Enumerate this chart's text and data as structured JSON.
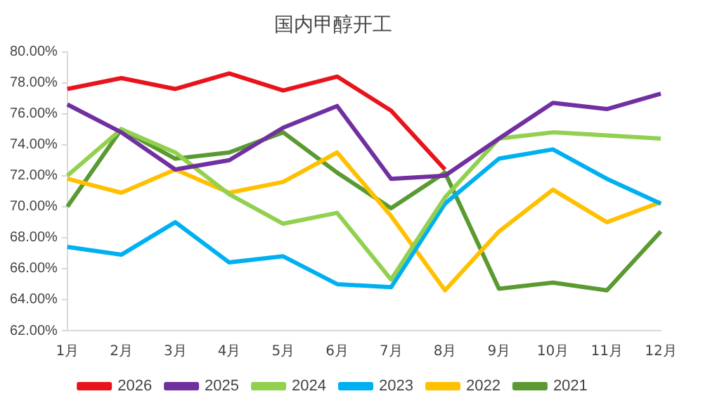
{
  "chart_data": {
    "type": "line",
    "title": "国内甲醇开工",
    "categories": [
      "1月",
      "2月",
      "3月",
      "4月",
      "5月",
      "6月",
      "7月",
      "8月",
      "9月",
      "10月",
      "11月",
      "12月"
    ],
    "ylim": [
      62,
      80
    ],
    "yticks": [
      {
        "value": 62,
        "label": "62.00%"
      },
      {
        "value": 64,
        "label": "64.00%"
      },
      {
        "value": 66,
        "label": "66.00%"
      },
      {
        "value": 68,
        "label": "68.00%"
      },
      {
        "value": 70,
        "label": "70.00%"
      },
      {
        "value": 72,
        "label": "72.00%"
      },
      {
        "value": 74,
        "label": "74.00%"
      },
      {
        "value": 76,
        "label": "76.00%"
      },
      {
        "value": 78,
        "label": "78.00%"
      },
      {
        "value": 80,
        "label": "80.00%"
      }
    ],
    "grid": false,
    "legend": "bottom",
    "marker": "none",
    "line_style": "solid",
    "series": [
      {
        "name": "2026",
        "color": "#e8141c",
        "values": [
          77.6,
          78.3,
          77.6,
          78.6,
          77.5,
          78.4,
          76.2,
          72.4,
          null,
          null,
          null,
          null
        ]
      },
      {
        "name": "2025",
        "color": "#7030a0",
        "values": [
          76.6,
          74.8,
          72.4,
          73.0,
          75.1,
          76.5,
          71.8,
          72.0,
          74.4,
          76.7,
          76.3,
          77.3
        ]
      },
      {
        "name": "2024",
        "color": "#92d050",
        "values": [
          72.0,
          75.0,
          73.5,
          70.8,
          68.9,
          69.6,
          65.3,
          70.6,
          74.4,
          74.8,
          74.6,
          74.4
        ]
      },
      {
        "name": "2023",
        "color": "#00b0f0",
        "values": [
          67.4,
          66.9,
          69.0,
          66.4,
          66.8,
          65.0,
          64.8,
          70.2,
          73.1,
          73.7,
          71.8,
          70.2
        ]
      },
      {
        "name": "2022",
        "color": "#ffc000",
        "values": [
          71.8,
          70.9,
          72.4,
          70.9,
          71.6,
          73.5,
          69.4,
          64.6,
          68.4,
          71.1,
          69.0,
          70.3
        ]
      },
      {
        "name": "2021",
        "color": "#5b9a32",
        "values": [
          70.0,
          75.0,
          73.1,
          73.5,
          74.8,
          72.2,
          69.9,
          72.2,
          64.7,
          65.1,
          64.6,
          68.4
        ]
      }
    ]
  }
}
